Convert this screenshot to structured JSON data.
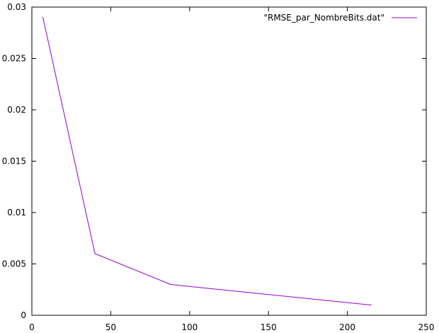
{
  "chart_data": {
    "type": "line",
    "xlim": [
      0,
      250
    ],
    "ylim": [
      0,
      0.03
    ],
    "x_ticks": [
      0,
      50,
      100,
      150,
      200,
      250
    ],
    "x_tick_labels": [
      "0",
      "50",
      "100",
      "150",
      "200",
      "250"
    ],
    "y_ticks": [
      0,
      0.005,
      0.01,
      0.015,
      0.02,
      0.025,
      0.03
    ],
    "y_tick_labels": [
      "0",
      "0.005",
      "0.01",
      "0.015",
      "0.02",
      "0.025",
      "0.03"
    ],
    "grid": false,
    "legend_position": "top-right",
    "series": [
      {
        "name": "\"RMSE_par_NombreBits.dat\"",
        "color": "#9400d3",
        "x": [
          7,
          40,
          88,
          215
        ],
        "y": [
          0.029,
          0.006,
          0.003,
          0.001
        ]
      }
    ]
  }
}
